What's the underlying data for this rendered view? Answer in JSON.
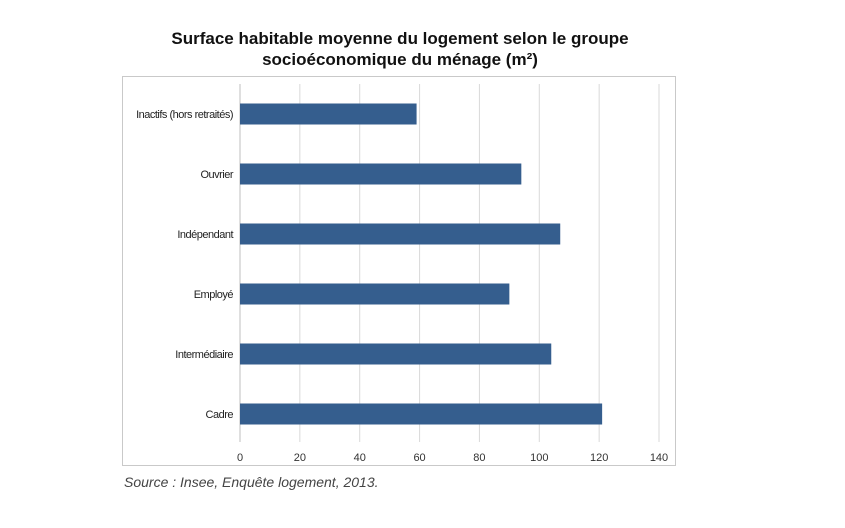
{
  "chart_data": {
    "type": "bar",
    "orientation": "horizontal",
    "title": [
      "Surface habitable moyenne du logement selon le groupe",
      "socioéconomique du ménage (m²)"
    ],
    "categories": [
      "Inactifs (hors retraités)",
      "Ouvrier",
      "Indépendant",
      "Employé",
      "Intermédiaire",
      "Cadre"
    ],
    "values": [
      59,
      94,
      107,
      90,
      104,
      121
    ],
    "xlim": [
      0,
      140
    ],
    "xticks": [
      0,
      20,
      40,
      60,
      80,
      100,
      120,
      140
    ],
    "grid": "vertical",
    "bar_color": "#355E8E",
    "grid_color": "#d9d9d9"
  },
  "source": "Source : Insee, Enquête logement, 2013."
}
